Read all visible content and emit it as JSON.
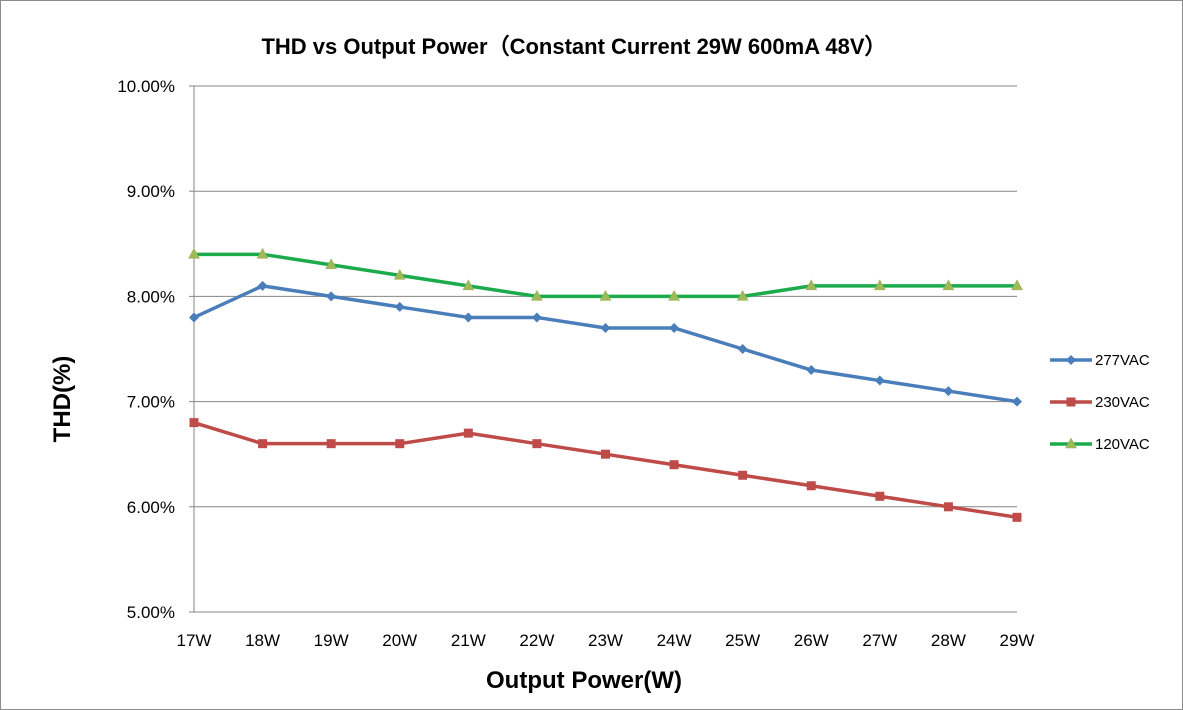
{
  "chart_data": {
    "type": "line",
    "title": "THD vs Output Power（Constant Current 29W   600mA 48V）",
    "xlabel": "Output Power(W)",
    "ylabel": "THD(%)",
    "categories": [
      "17W",
      "18W",
      "19W",
      "20W",
      "21W",
      "22W",
      "23W",
      "24W",
      "25W",
      "26W",
      "27W",
      "28W",
      "29W"
    ],
    "ylim": [
      5.0,
      10.0
    ],
    "yticks": [
      5.0,
      6.0,
      7.0,
      8.0,
      9.0,
      10.0
    ],
    "ytick_labels": [
      "5.00%",
      "6.00%",
      "7.00%",
      "8.00%",
      "9.00%",
      "10.00%"
    ],
    "grid": true,
    "legend_position": "right",
    "series": [
      {
        "name": "277VAC",
        "color": "#4a7ebb",
        "marker": "diamond",
        "values": [
          7.8,
          8.1,
          8.0,
          7.9,
          7.8,
          7.8,
          7.7,
          7.7,
          7.5,
          7.3,
          7.2,
          7.1,
          7.0
        ]
      },
      {
        "name": "230VAC",
        "color": "#be4b48",
        "marker": "square",
        "values": [
          6.8,
          6.6,
          6.6,
          6.6,
          6.7,
          6.6,
          6.5,
          6.4,
          6.3,
          6.2,
          6.1,
          6.0,
          5.9
        ]
      },
      {
        "name": "120VAC",
        "color": "#1cab4b",
        "marker": "triangle",
        "marker_color": "#9bbb59",
        "values": [
          8.4,
          8.4,
          8.3,
          8.2,
          8.1,
          8.0,
          8.0,
          8.0,
          8.0,
          8.1,
          8.1,
          8.1,
          8.1
        ]
      }
    ]
  }
}
